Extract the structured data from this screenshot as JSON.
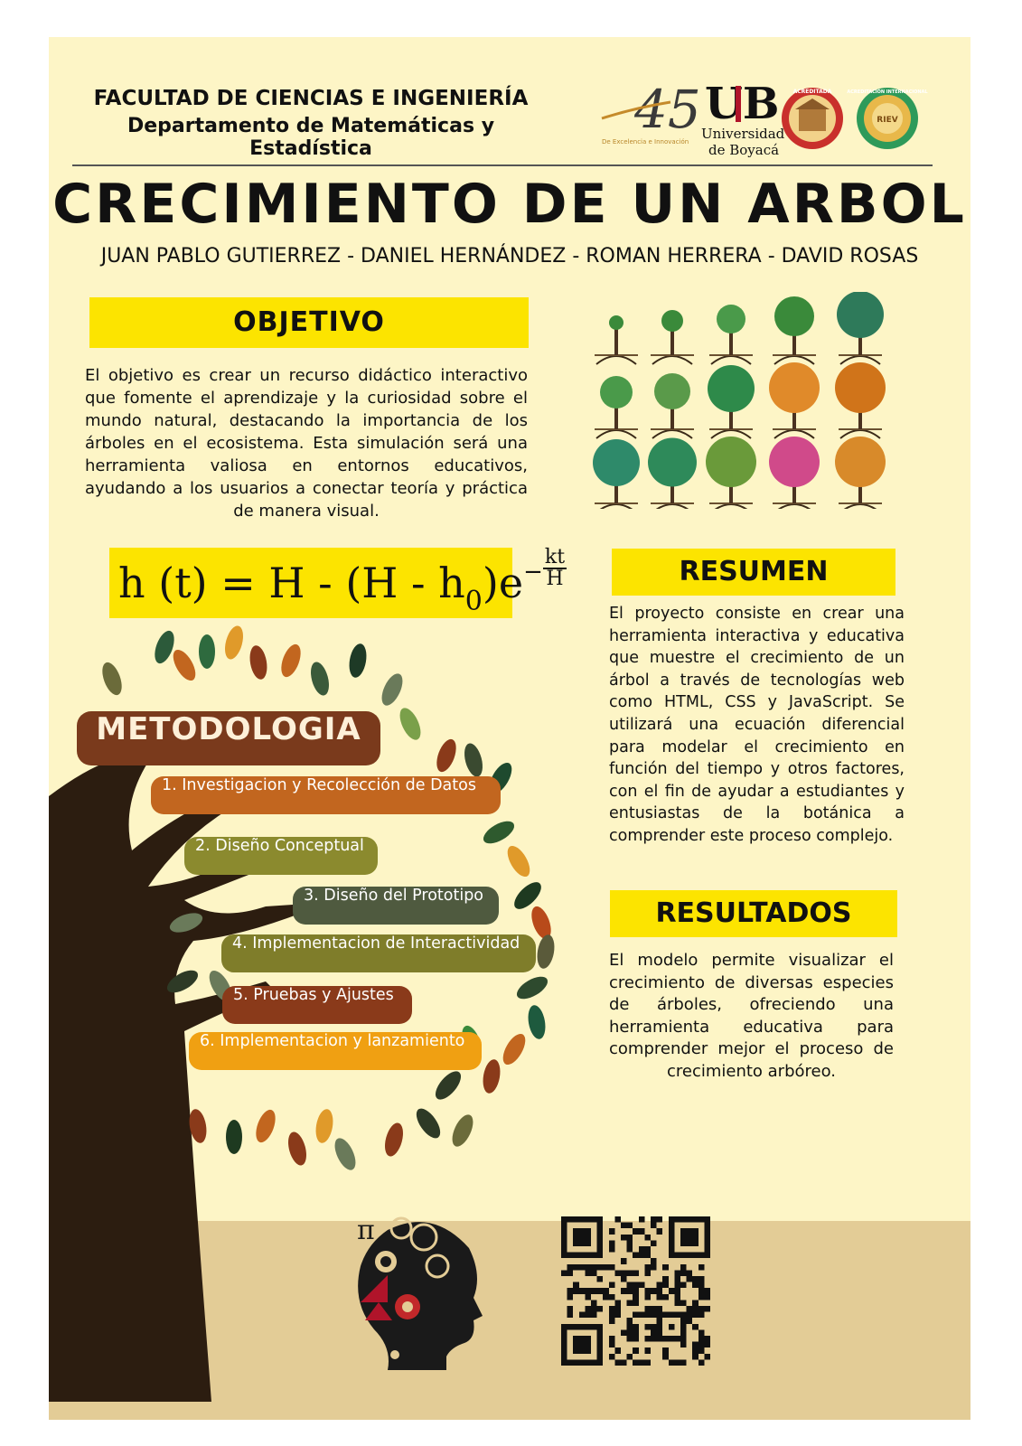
{
  "header": {
    "faculty": "FACULTAD DE CIENCIAS E INGENIERÍA",
    "department": "Departamento de Matemáticas y Estadística"
  },
  "logos": {
    "anniversary_number": "45",
    "anniversary_tagline": "De Excelencia e Innovación",
    "university_initials": "UB",
    "university_name_1": "Universidad",
    "university_name_2": "de Boyacá",
    "seal1_label": "ACREDITADA",
    "seal2_label": "ACREDITACIÓN INTERNACIONAL",
    "seal2_inner": "RIEV"
  },
  "title": "CRECIMIENTO DE UN ARBOL",
  "authors": "JUAN PABLO GUTIERREZ - DANIEL HERNÁNDEZ - ROMAN  HERRERA - DAVID ROSAS",
  "objetivo": {
    "heading": "OBJETIVO",
    "text": "El objetivo es crear un recurso didáctico interactivo que fomente el aprendizaje y la curiosidad sobre el mundo natural, destacando la importancia de los árboles en el ecosistema. Esta simulación será una herramienta valiosa en entornos educativos, ayudando a los usuarios a conectar teoría y práctica de manera visual."
  },
  "equation": {
    "lhs": "h (t) = H - (H - h",
    "subscript": "0",
    "rhs": ")e",
    "minus": "−",
    "exp_numerator": "kt",
    "exp_denominator": "H"
  },
  "resumen": {
    "heading": "RESUMEN",
    "text": "El proyecto consiste en crear una herramienta interactiva y educativa que muestre el crecimiento de un árbol a través de tecnologías web como HTML, CSS y JavaScript. Se utilizará una ecuación diferencial para modelar el crecimiento en función del tiempo y otros factores, con el fin de ayudar a estudiantes y entusiastas de la botánica a comprender este proceso complejo."
  },
  "resultados": {
    "heading": "RESULTADOS",
    "text": "El modelo permite visualizar el crecimiento de diversas especies de árboles, ofreciendo una herramienta educativa para comprender mejor el proceso de crecimiento arbóreo."
  },
  "metodologia": {
    "heading": "METODOLOGIA",
    "steps": [
      {
        "label": "1.    Investigacion y Recolección de Datos",
        "color": "#c2661f"
      },
      {
        "label": "2. Diseño Conceptual",
        "color": "#8b8a2e"
      },
      {
        "label": "3. Diseño del Prototipo",
        "color": "#4f5a3f"
      },
      {
        "label": "4. Implementacion de Interactividad",
        "color": "#7f7d2a"
      },
      {
        "label": "5. Pruebas y Ajustes",
        "color": "#8a3a1a"
      },
      {
        "label": "6. Implementacion y lanzamiento",
        "color": "#f0a012"
      }
    ]
  },
  "footer": {
    "pi_symbol": "π"
  },
  "colors": {
    "background": "#fdf5c6",
    "highlight_yellow": "#fce400",
    "footer_tan": "#e3cc96",
    "trunk": "#2c1d10",
    "metodologia_brown": "#7a3a1c"
  }
}
